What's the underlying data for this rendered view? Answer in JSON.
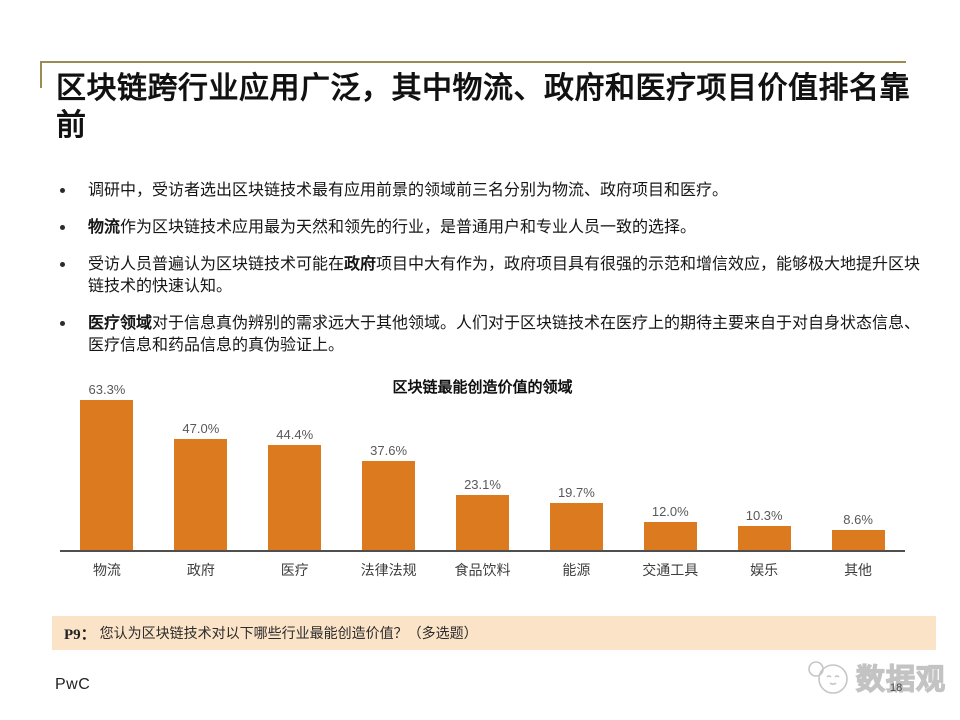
{
  "slide": {
    "title": "区块链跨行业应用广泛，其中物流、政府和医疗项目价值排名靠前",
    "bullets": [
      {
        "pre": "调研中，受访者选出区块链技术最有应用前景的领域前三名分别为物流、政府项目和医疗。",
        "bold": "",
        "post": ""
      },
      {
        "pre": "",
        "bold": "物流",
        "post": "作为区块链技术应用最为天然和领先的行业，是普通用户和专业人员一致的选择。"
      },
      {
        "pre": "受访人员普遍认为区块链技术可能在",
        "bold": "政府",
        "post": "项目中大有作为，政府项目具有很强的示范和增信效应，能够极大地提升区块链技术的快速认知。"
      },
      {
        "pre": "",
        "bold": "医疗领域",
        "post": "对于信息真伪辨别的需求远大于其他领域。人们对于区块链技术在医疗上的期待主要来自于对自身状态信息、医疗信息和药品信息的真伪验证上。"
      }
    ],
    "footnote": {
      "prefix": "P9：",
      "text": "您认为区块链技术对以下哪些行业最能创造价值？（多选题）"
    },
    "footer": {
      "logo": "PwC",
      "page_number": "18",
      "watermark": "数据观"
    }
  },
  "chart_data": {
    "type": "bar",
    "title": "区块链最能创造价值的领域",
    "categories": [
      "物流",
      "政府",
      "医疗",
      "法律法规",
      "食品饮料",
      "能源",
      "交通工具",
      "娱乐",
      "其他"
    ],
    "values": [
      63.3,
      47.0,
      44.4,
      37.6,
      23.1,
      19.7,
      12.0,
      10.3,
      8.6
    ],
    "value_labels": [
      "63.3%",
      "47.0%",
      "44.4%",
      "37.6%",
      "23.1%",
      "19.7%",
      "12.0%",
      "10.3%",
      "8.6%"
    ],
    "xlabel": "",
    "ylabel": "",
    "ylim": [
      0,
      70
    ],
    "grid": false,
    "legend": false,
    "bar_color": "#db7a1e",
    "accent_rule_color": "#9b8b55",
    "footnote_bg_color": "#fbe3c8"
  }
}
